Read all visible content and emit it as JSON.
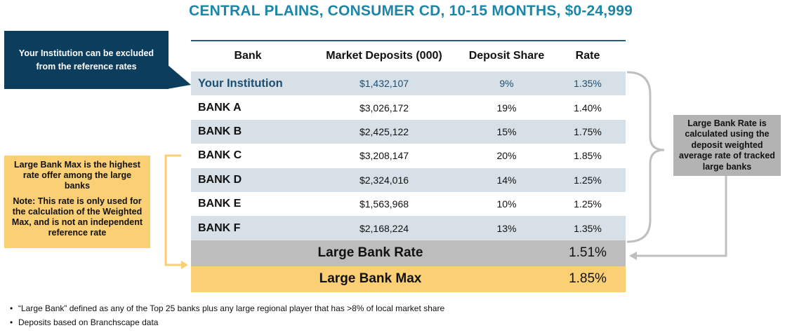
{
  "title": "CENTRAL PLAINS, CONSUMER CD, 10-15 MONTHS, $0-24,999",
  "callouts": {
    "institution": "Your Institution can be excluded from the reference rates",
    "large_bank_rate": "Large Bank Rate is calculated using the deposit weighted average rate of tracked large banks",
    "large_bank_max_line1": "Large Bank Max is the highest rate offer among the large banks",
    "large_bank_max_line2": "Note: This rate is only used for the calculation of the Weighted Max, and is not an independent reference rate"
  },
  "table": {
    "headers": [
      "Bank",
      "Market Deposits (000)",
      "Deposit Share",
      "Rate"
    ],
    "rows": [
      {
        "bank": "Your Institution",
        "deposits": "$1,432,107",
        "share": "9%",
        "rate": "1.35%"
      },
      {
        "bank": "BANK A",
        "deposits": "$3,026,172",
        "share": "19%",
        "rate": "1.40%"
      },
      {
        "bank": "BANK B",
        "deposits": "$2,425,122",
        "share": "15%",
        "rate": "1.75%"
      },
      {
        "bank": "BANK C",
        "deposits": "$3,208,147",
        "share": "20%",
        "rate": "1.85%"
      },
      {
        "bank": "BANK D",
        "deposits": "$2,324,016",
        "share": "14%",
        "rate": "1.25%"
      },
      {
        "bank": "BANK E",
        "deposits": "$1,563,968",
        "share": "10%",
        "rate": "1.25%"
      },
      {
        "bank": "BANK F",
        "deposits": "$2,168,224",
        "share": "13%",
        "rate": "1.35%"
      }
    ],
    "summary": [
      {
        "label": "Large Bank Rate",
        "value": "1.51%"
      },
      {
        "label": "Large Bank Max",
        "value": "1.85%"
      }
    ]
  },
  "notes": [
    "“Large Bank” defined as any of the Top 25 banks plus any large regional player  that has >8% of local market share",
    "Deposits based on Branchscape data"
  ],
  "colors": {
    "title": "#1d86a6",
    "callout_dark": "#0d3d5c",
    "row_alt": "#d7e0e6",
    "rate_row": "#bdbdbd",
    "max_row": "#fbcf73",
    "bracket_gray": "#bfbfbf",
    "bracket_yellow": "#fbcf73"
  }
}
